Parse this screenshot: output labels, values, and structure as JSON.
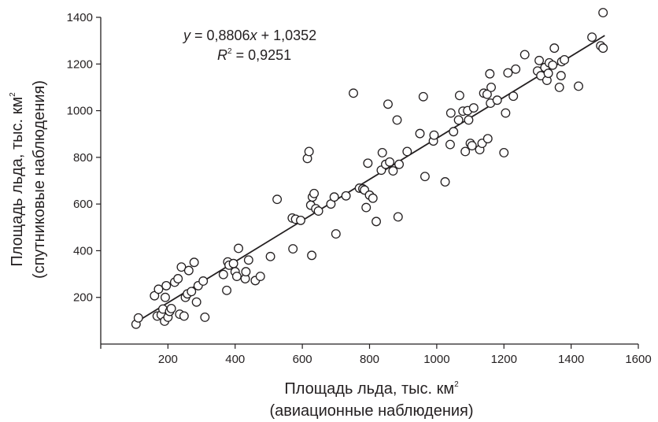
{
  "chart_data": {
    "type": "scatter",
    "xlabel_line1": "Площадь льда, тыс. км",
    "xlabel_line2": "(авиационные наблюдения)",
    "ylabel_line1": "Площадь льда, тыс. км",
    "ylabel_line2": "(спутниковые наблюдения)",
    "unit_superscript": "2",
    "xlim": [
      0,
      1600
    ],
    "ylim": [
      0,
      1400
    ],
    "x_ticks": [
      200,
      400,
      600,
      800,
      1000,
      1200,
      1400,
      1600
    ],
    "y_ticks": [
      200,
      400,
      600,
      800,
      1000,
      1200,
      1400
    ],
    "grid": false,
    "equation": {
      "y": "y",
      "eq_text": " = 0,8806",
      "x": "x",
      "eq_tail": " + 1,0352",
      "r": "R",
      "r_sup": "2",
      "r_tail": " = 0,9251"
    },
    "trendline": {
      "slope": 0.8806,
      "intercept": 1.0352,
      "x_range": [
        100,
        1500
      ]
    },
    "points": [
      [
        105,
        85
      ],
      [
        112,
        112
      ],
      [
        160,
        207
      ],
      [
        168,
        120
      ],
      [
        172,
        235
      ],
      [
        180,
        125
      ],
      [
        185,
        150
      ],
      [
        190,
        98
      ],
      [
        192,
        200
      ],
      [
        195,
        250
      ],
      [
        200,
        115
      ],
      [
        205,
        140
      ],
      [
        210,
        152
      ],
      [
        220,
        265
      ],
      [
        230,
        280
      ],
      [
        235,
        128
      ],
      [
        240,
        330
      ],
      [
        248,
        120
      ],
      [
        252,
        200
      ],
      [
        258,
        215
      ],
      [
        262,
        315
      ],
      [
        270,
        225
      ],
      [
        278,
        350
      ],
      [
        285,
        180
      ],
      [
        290,
        250
      ],
      [
        305,
        270
      ],
      [
        310,
        115
      ],
      [
        365,
        298
      ],
      [
        375,
        230
      ],
      [
        378,
        352
      ],
      [
        382,
        338
      ],
      [
        395,
        345
      ],
      [
        400,
        310
      ],
      [
        405,
        290
      ],
      [
        410,
        410
      ],
      [
        430,
        280
      ],
      [
        432,
        310
      ],
      [
        440,
        360
      ],
      [
        460,
        272
      ],
      [
        475,
        290
      ],
      [
        505,
        375
      ],
      [
        525,
        620
      ],
      [
        570,
        540
      ],
      [
        572,
        408
      ],
      [
        580,
        535
      ],
      [
        595,
        530
      ],
      [
        615,
        795
      ],
      [
        620,
        825
      ],
      [
        625,
        595
      ],
      [
        628,
        380
      ],
      [
        630,
        630
      ],
      [
        635,
        645
      ],
      [
        640,
        580
      ],
      [
        648,
        570
      ],
      [
        685,
        600
      ],
      [
        695,
        630
      ],
      [
        700,
        472
      ],
      [
        730,
        635
      ],
      [
        752,
        1075
      ],
      [
        770,
        668
      ],
      [
        780,
        665
      ],
      [
        785,
        660
      ],
      [
        790,
        585
      ],
      [
        795,
        775
      ],
      [
        800,
        638
      ],
      [
        810,
        625
      ],
      [
        820,
        525
      ],
      [
        835,
        745
      ],
      [
        838,
        820
      ],
      [
        848,
        770
      ],
      [
        855,
        1028
      ],
      [
        860,
        780
      ],
      [
        870,
        742
      ],
      [
        882,
        960
      ],
      [
        885,
        545
      ],
      [
        888,
        770
      ],
      [
        912,
        825
      ],
      [
        950,
        902
      ],
      [
        960,
        1060
      ],
      [
        965,
        718
      ],
      [
        990,
        870
      ],
      [
        992,
        895
      ],
      [
        1025,
        695
      ],
      [
        1040,
        855
      ],
      [
        1042,
        990
      ],
      [
        1050,
        910
      ],
      [
        1065,
        960
      ],
      [
        1068,
        1065
      ],
      [
        1078,
        998
      ],
      [
        1085,
        825
      ],
      [
        1092,
        1000
      ],
      [
        1095,
        960
      ],
      [
        1100,
        860
      ],
      [
        1105,
        850
      ],
      [
        1110,
        1012
      ],
      [
        1128,
        833
      ],
      [
        1135,
        860
      ],
      [
        1140,
        1075
      ],
      [
        1150,
        1070
      ],
      [
        1152,
        880
      ],
      [
        1158,
        1158
      ],
      [
        1160,
        1032
      ],
      [
        1162,
        1100
      ],
      [
        1180,
        1045
      ],
      [
        1200,
        820
      ],
      [
        1205,
        990
      ],
      [
        1212,
        1162
      ],
      [
        1228,
        1062
      ],
      [
        1235,
        1178
      ],
      [
        1262,
        1240
      ],
      [
        1300,
        1170
      ],
      [
        1305,
        1215
      ],
      [
        1310,
        1150
      ],
      [
        1322,
        1185
      ],
      [
        1328,
        1130
      ],
      [
        1332,
        1160
      ],
      [
        1335,
        1205
      ],
      [
        1345,
        1195
      ],
      [
        1350,
        1268
      ],
      [
        1365,
        1100
      ],
      [
        1370,
        1150
      ],
      [
        1372,
        1210
      ],
      [
        1380,
        1218
      ],
      [
        1422,
        1105
      ],
      [
        1462,
        1315
      ],
      [
        1488,
        1278
      ],
      [
        1495,
        1268
      ],
      [
        1495,
        1420
      ]
    ]
  }
}
